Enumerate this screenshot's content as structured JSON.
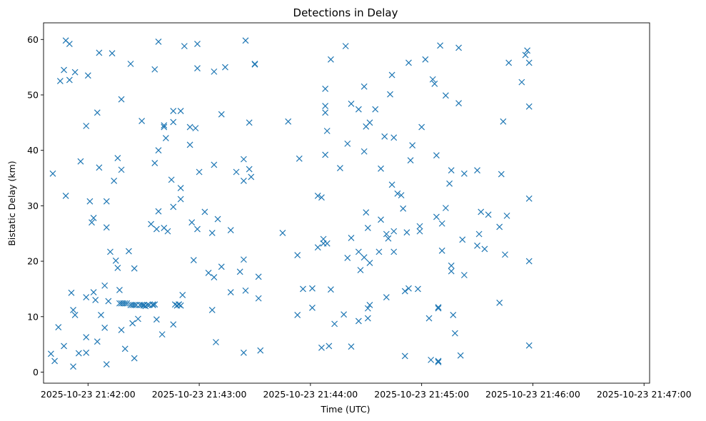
{
  "chart_data": {
    "type": "scatter",
    "title": "Detections in Delay",
    "xlabel": "Time (UTC)",
    "ylabel": "Bistatic Delay (km)",
    "x_unit": "seconds after 2025-10-23 21:42:00",
    "xlim": [
      -24,
      303
    ],
    "ylim": [
      -2,
      63
    ],
    "xticks": [
      0,
      60,
      120,
      180,
      240,
      300
    ],
    "xtick_labels": [
      "2025-10-23 21:42:00",
      "2025-10-23 21:43:00",
      "2025-10-23 21:44:00",
      "2025-10-23 21:45:00",
      "2025-10-23 21:46:00",
      "2025-10-23 21:47:00"
    ],
    "yticks": [
      0,
      10,
      20,
      30,
      40,
      50,
      60
    ],
    "ytick_labels": [
      "0",
      "10",
      "20",
      "30",
      "40",
      "50",
      "60"
    ],
    "marker": "x",
    "color": "#1f77b4",
    "series": [
      {
        "name": "detections",
        "points": [
          [
            -20,
            3.3
          ],
          [
            -18,
            2.0
          ],
          [
            -19,
            35.8
          ],
          [
            -16,
            8.1
          ],
          [
            -15,
            52.5
          ],
          [
            -13,
            4.7
          ],
          [
            -12,
            31.8
          ],
          [
            -13,
            54.5
          ],
          [
            -12,
            59.8
          ],
          [
            -10,
            52.7
          ],
          [
            -10,
            59.2
          ],
          [
            -9,
            14.3
          ],
          [
            -8,
            11.2
          ],
          [
            -8,
            1.0
          ],
          [
            -7,
            10.3
          ],
          [
            -7,
            54.1
          ],
          [
            -5,
            3.4
          ],
          [
            -4,
            38.0
          ],
          [
            -1,
            3.5
          ],
          [
            -1,
            6.3
          ],
          [
            -1,
            13.5
          ],
          [
            -1,
            44.4
          ],
          [
            0,
            53.5
          ],
          [
            1,
            30.8
          ],
          [
            2,
            27.0
          ],
          [
            3,
            27.8
          ],
          [
            3,
            14.4
          ],
          [
            4,
            13.0
          ],
          [
            5,
            5.5
          ],
          [
            5,
            46.8
          ],
          [
            6,
            57.6
          ],
          [
            6,
            36.9
          ],
          [
            7,
            10.3
          ],
          [
            9,
            8.0
          ],
          [
            9,
            15.6
          ],
          [
            10,
            1.4
          ],
          [
            10,
            30.8
          ],
          [
            10,
            26.1
          ],
          [
            11,
            12.8
          ],
          [
            12,
            21.7
          ],
          [
            13,
            57.5
          ],
          [
            14,
            34.5
          ],
          [
            15,
            20.1
          ],
          [
            16,
            18.8
          ],
          [
            16,
            38.6
          ],
          [
            17,
            14.8
          ],
          [
            17,
            12.4
          ],
          [
            18,
            7.6
          ],
          [
            18,
            12.4
          ],
          [
            18,
            36.5
          ],
          [
            18,
            49.2
          ],
          [
            19,
            12.4
          ],
          [
            20,
            12.4
          ],
          [
            20,
            4.2
          ],
          [
            21,
            12.4
          ],
          [
            22,
            21.8
          ],
          [
            23,
            55.6
          ],
          [
            23,
            12.1
          ],
          [
            24,
            12.1
          ],
          [
            24,
            8.8
          ],
          [
            25,
            2.5
          ],
          [
            25,
            18.7
          ],
          [
            25,
            12.1
          ],
          [
            26,
            12.1
          ],
          [
            27,
            9.6
          ],
          [
            28,
            12.1
          ],
          [
            29,
            12.1
          ],
          [
            29,
            45.3
          ],
          [
            30,
            12.1
          ],
          [
            30,
            12.0
          ],
          [
            31,
            11.9
          ],
          [
            32,
            12.1
          ],
          [
            33,
            12.1
          ],
          [
            34,
            26.7
          ],
          [
            35,
            12.2
          ],
          [
            35,
            12.1
          ],
          [
            36,
            12.2
          ],
          [
            36,
            54.6
          ],
          [
            36,
            37.7
          ],
          [
            37,
            9.5
          ],
          [
            37,
            25.8
          ],
          [
            38,
            29.0
          ],
          [
            38,
            40.0
          ],
          [
            38,
            59.6
          ],
          [
            40,
            6.8
          ],
          [
            41,
            44.5
          ],
          [
            41,
            44.2
          ],
          [
            41,
            26.0
          ],
          [
            42,
            42.2
          ],
          [
            43,
            25.4
          ],
          [
            45,
            34.7
          ],
          [
            46,
            8.6
          ],
          [
            46,
            47.1
          ],
          [
            46,
            45.1
          ],
          [
            46,
            29.8
          ],
          [
            47,
            12.2
          ],
          [
            48,
            12.0
          ],
          [
            49,
            12.2
          ],
          [
            49,
            12.2
          ],
          [
            50,
            12.0
          ],
          [
            50,
            47.1
          ],
          [
            50,
            33.2
          ],
          [
            50,
            31.2
          ],
          [
            51,
            13.9
          ],
          [
            52,
            58.8
          ],
          [
            55,
            44.2
          ],
          [
            55,
            41.0
          ],
          [
            56,
            27.0
          ],
          [
            57,
            20.2
          ],
          [
            58,
            44.0
          ],
          [
            59,
            25.8
          ],
          [
            59,
            54.8
          ],
          [
            59,
            59.2
          ],
          [
            60,
            36.1
          ],
          [
            63,
            28.9
          ],
          [
            65,
            17.9
          ],
          [
            67,
            25.1
          ],
          [
            67,
            11.2
          ],
          [
            68,
            37.4
          ],
          [
            68,
            17.1
          ],
          [
            68,
            54.2
          ],
          [
            69,
            5.4
          ],
          [
            70,
            27.6
          ],
          [
            72,
            46.5
          ],
          [
            72,
            19.0
          ],
          [
            74,
            55.0
          ],
          [
            77,
            14.4
          ],
          [
            77,
            25.6
          ],
          [
            80,
            36.1
          ],
          [
            82,
            18.1
          ],
          [
            84,
            34.5
          ],
          [
            84,
            3.5
          ],
          [
            84,
            38.4
          ],
          [
            84,
            20.3
          ],
          [
            85,
            14.7
          ],
          [
            85,
            59.8
          ],
          [
            87,
            45.0
          ],
          [
            87,
            36.6
          ],
          [
            88,
            35.2
          ],
          [
            90,
            55.6
          ],
          [
            90,
            55.5
          ],
          [
            92,
            17.2
          ],
          [
            92,
            13.3
          ],
          [
            93,
            3.9
          ],
          [
            105,
            25.1
          ],
          [
            108,
            45.2
          ],
          [
            113,
            21.1
          ],
          [
            113,
            10.3
          ],
          [
            114,
            38.5
          ],
          [
            116,
            15.0
          ],
          [
            121,
            11.6
          ],
          [
            121,
            15.1
          ],
          [
            124,
            22.5
          ],
          [
            124,
            31.8
          ],
          [
            126,
            4.4
          ],
          [
            126,
            31.5
          ],
          [
            127,
            24.0
          ],
          [
            127,
            23.2
          ],
          [
            128,
            39.2
          ],
          [
            128,
            46.8
          ],
          [
            128,
            48.0
          ],
          [
            128,
            51.1
          ],
          [
            129,
            43.5
          ],
          [
            129,
            23.2
          ],
          [
            130,
            4.7
          ],
          [
            131,
            14.9
          ],
          [
            131,
            56.4
          ],
          [
            133,
            8.7
          ],
          [
            136,
            36.8
          ],
          [
            138,
            10.4
          ],
          [
            139,
            58.8
          ],
          [
            140,
            41.2
          ],
          [
            140,
            20.6
          ],
          [
            142,
            24.2
          ],
          [
            142,
            48.4
          ],
          [
            142,
            4.6
          ],
          [
            146,
            21.7
          ],
          [
            146,
            9.2
          ],
          [
            146,
            47.4
          ],
          [
            147,
            18.4
          ],
          [
            149,
            51.5
          ],
          [
            149,
            39.8
          ],
          [
            149,
            20.7
          ],
          [
            150,
            44.3
          ],
          [
            150,
            28.8
          ],
          [
            151,
            11.5
          ],
          [
            151,
            9.7
          ],
          [
            151,
            26.0
          ],
          [
            152,
            12.1
          ],
          [
            152,
            19.7
          ],
          [
            152,
            45.0
          ],
          [
            155,
            47.4
          ],
          [
            157,
            21.7
          ],
          [
            158,
            36.7
          ],
          [
            158,
            27.5
          ],
          [
            160,
            42.5
          ],
          [
            161,
            24.9
          ],
          [
            161,
            13.5
          ],
          [
            162,
            24.1
          ],
          [
            163,
            50.1
          ],
          [
            164,
            53.6
          ],
          [
            164,
            33.8
          ],
          [
            165,
            42.3
          ],
          [
            165,
            25.4
          ],
          [
            165,
            21.7
          ],
          [
            167,
            32.2
          ],
          [
            169,
            31.9
          ],
          [
            170,
            29.5
          ],
          [
            171,
            14.6
          ],
          [
            171,
            2.9
          ],
          [
            172,
            25.2
          ],
          [
            173,
            55.8
          ],
          [
            173,
            15.1
          ],
          [
            174,
            38.2
          ],
          [
            175,
            40.9
          ],
          [
            178,
            15.0
          ],
          [
            179,
            26.3
          ],
          [
            179,
            25.4
          ],
          [
            180,
            44.2
          ],
          [
            182,
            56.4
          ],
          [
            184,
            9.7
          ],
          [
            185,
            2.2
          ],
          [
            186,
            52.8
          ],
          [
            187,
            52.0
          ],
          [
            188,
            39.1
          ],
          [
            188,
            28.0
          ],
          [
            189,
            2.0
          ],
          [
            189,
            1.8
          ],
          [
            189,
            11.7
          ],
          [
            189,
            11.5
          ],
          [
            190,
            58.9
          ],
          [
            191,
            26.8
          ],
          [
            191,
            21.9
          ],
          [
            193,
            29.6
          ],
          [
            193,
            49.9
          ],
          [
            195,
            34.0
          ],
          [
            196,
            18.2
          ],
          [
            196,
            19.2
          ],
          [
            196,
            36.4
          ],
          [
            197,
            10.3
          ],
          [
            198,
            7.0
          ],
          [
            200,
            48.5
          ],
          [
            200,
            58.5
          ],
          [
            201,
            3.0
          ],
          [
            202,
            23.9
          ],
          [
            203,
            35.8
          ],
          [
            203,
            17.5
          ],
          [
            210,
            36.4
          ],
          [
            210,
            22.8
          ],
          [
            211,
            24.9
          ],
          [
            212,
            28.9
          ],
          [
            214,
            22.2
          ],
          [
            216,
            28.4
          ],
          [
            222,
            26.2
          ],
          [
            222,
            12.5
          ],
          [
            223,
            35.7
          ],
          [
            224,
            45.2
          ],
          [
            225,
            21.2
          ],
          [
            226,
            28.2
          ],
          [
            227,
            55.8
          ],
          [
            234,
            52.3
          ],
          [
            236,
            57.2
          ],
          [
            237,
            58.0
          ],
          [
            238,
            55.8
          ],
          [
            238,
            20.0
          ],
          [
            238,
            47.9
          ],
          [
            238,
            31.3
          ],
          [
            238,
            4.8
          ]
        ]
      }
    ]
  }
}
